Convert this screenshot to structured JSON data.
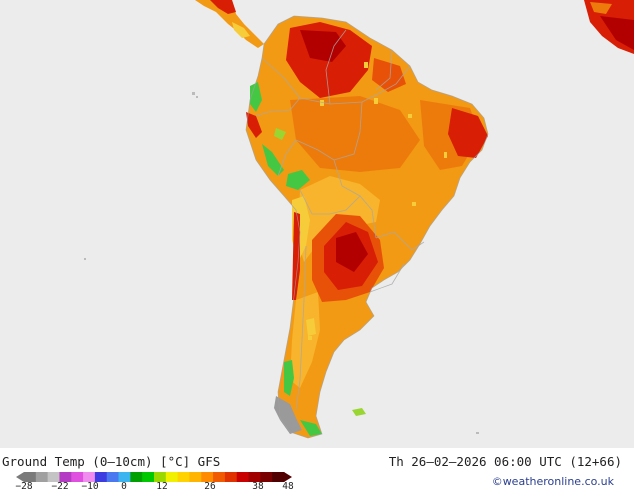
{
  "header_title": "Ground Temp (0–10cm) [°C] GFS",
  "datetime": "Th 26–02–2026 06:00 UTC (12+66)",
  "credit": "©weatheronline.co.uk",
  "colorbar": {
    "ticks": [
      "−28",
      "−22",
      "−10",
      "0",
      "12",
      "26",
      "38",
      "48"
    ],
    "colors": [
      "#7a7a7a",
      "#a0a0a0",
      "#c4c4c4",
      "#b43cc4",
      "#e050e0",
      "#f08cf0",
      "#3c3ce0",
      "#4a78f0",
      "#3cb4f0",
      "#00a000",
      "#00c800",
      "#9ad800",
      "#f0f000",
      "#ffd200",
      "#ffb400",
      "#ff8c00",
      "#f05a00",
      "#e03200",
      "#c80000",
      "#a00000",
      "#780000",
      "#500000"
    ]
  },
  "map_colors": {
    "ocean": "#ececec",
    "border": "#a8a8a8",
    "base_orange": "#f39a14",
    "light_orange": "#f7b42c",
    "dark_orange": "#ed7b0c",
    "red_orange": "#e85208",
    "red": "#d81e05",
    "dark_red": "#b20000",
    "yellow": "#f6cc3a",
    "green": "#44c844",
    "light_green": "#9ad632",
    "grey": "#9a9a9a"
  }
}
